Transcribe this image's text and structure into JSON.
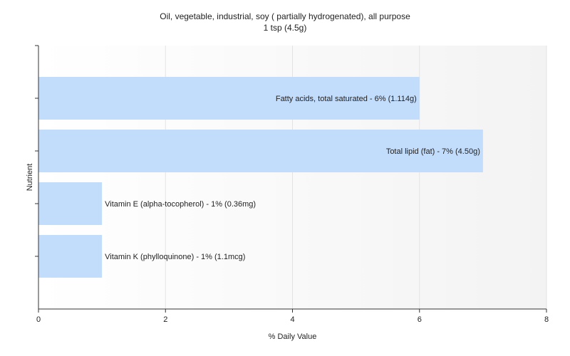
{
  "chart_data": {
    "type": "bar",
    "orientation": "horizontal",
    "title": "Oil, vegetable, industrial, soy ( partially hydrogenated), all purpose",
    "subtitle": "1 tsp (4.5g)",
    "xlabel": "% Daily Value",
    "ylabel": "Nutrient",
    "xlim": [
      0,
      8
    ],
    "xticks": [
      "0",
      "2",
      "4",
      "6",
      "8"
    ],
    "grid": true,
    "categories": [
      "Fatty acids, total saturated - 6% (1.114g)",
      "Total lipid (fat) - 7% (4.50g)",
      "Vitamin E (alpha-tocopherol) - 1% (0.36mg)",
      "Vitamin K (phylloquinone) - 1% (1.1mcg)"
    ],
    "values": [
      6,
      7,
      1,
      1
    ],
    "bar_color": "#c2dcfc",
    "background_color": "#f7f7f7",
    "grid_color": "#e3e3e3"
  }
}
